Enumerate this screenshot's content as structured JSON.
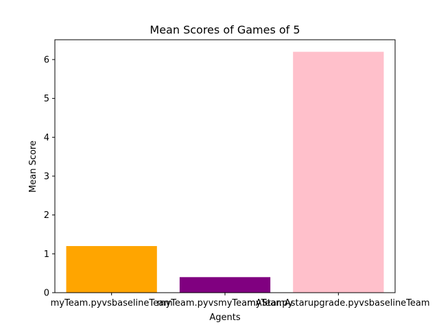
{
  "chart_data": {
    "type": "bar",
    "title": "Mean Scores of Games of 5",
    "xlabel": "Agents",
    "ylabel": "Mean Score",
    "categories": [
      "myTeam.pyvsbaselineTeam",
      "myTeam.pyvsmyTeamAStar.py",
      "myTeamAstarupgrade.pyvsbaselineTeam"
    ],
    "values": [
      1.2,
      0.4,
      6.2
    ],
    "colors": [
      "#ffa500",
      "#800080",
      "#ffc0cb"
    ],
    "ylim": [
      0,
      6.51
    ],
    "yticks": [
      0,
      1,
      2,
      3,
      4,
      5,
      6
    ],
    "grid": false
  }
}
